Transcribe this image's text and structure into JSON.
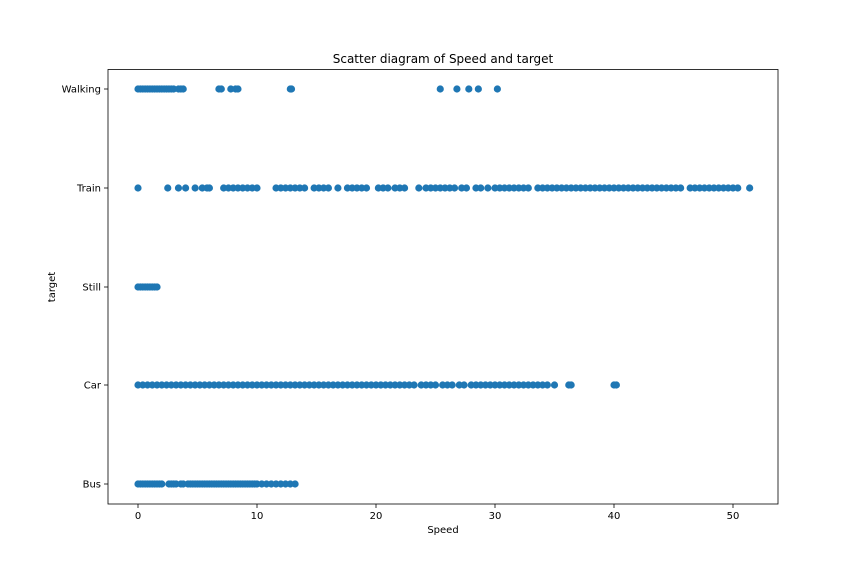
{
  "chart_data": {
    "type": "scatter",
    "title": "Scatter diagram of Speed and target",
    "xlabel": "Speed",
    "ylabel": "target",
    "xlim": [
      -2.6,
      54.0
    ],
    "xticks": [
      0,
      10,
      20,
      30,
      40,
      50
    ],
    "categories": [
      "Bus",
      "Car",
      "Still",
      "Train",
      "Walking"
    ],
    "grid": false,
    "legend": "none",
    "marker_color": "#1f77b4",
    "series": [
      {
        "category": "Bus",
        "x": [
          0,
          0.2,
          0.4,
          0.6,
          0.8,
          1.0,
          1.2,
          1.4,
          1.6,
          1.8,
          2.0,
          2.6,
          2.8,
          3.0,
          3.2,
          3.6,
          3.8,
          4.2,
          4.4,
          4.6,
          4.8,
          5.0,
          5.2,
          5.4,
          5.6,
          5.8,
          6.0,
          6.2,
          6.4,
          6.6,
          6.8,
          7.0,
          7.2,
          7.4,
          7.6,
          7.8,
          8.0,
          8.2,
          8.4,
          8.6,
          8.8,
          9.0,
          9.2,
          9.4,
          9.6,
          9.8,
          10.0,
          10.4,
          10.8,
          11.2,
          11.6,
          12.0,
          12.4,
          12.8,
          13.2
        ]
      },
      {
        "category": "Car",
        "x": [
          0,
          0.4,
          0.8,
          1.2,
          1.6,
          2.0,
          2.4,
          2.8,
          3.2,
          3.6,
          4.0,
          4.4,
          4.8,
          5.2,
          5.6,
          6.0,
          6.4,
          6.8,
          7.2,
          7.6,
          8.0,
          8.4,
          8.8,
          9.2,
          9.6,
          10.0,
          10.4,
          10.8,
          11.2,
          11.6,
          12.0,
          12.4,
          12.8,
          13.2,
          13.6,
          14.0,
          14.4,
          14.8,
          15.2,
          15.6,
          16.0,
          16.4,
          16.8,
          17.2,
          17.6,
          18.0,
          18.4,
          18.8,
          19.2,
          19.6,
          20.0,
          20.4,
          20.8,
          21.2,
          21.6,
          22.0,
          22.4,
          22.8,
          23.2,
          23.8,
          24.2,
          24.6,
          25.0,
          25.6,
          26.0,
          26.4,
          27.0,
          27.4,
          28.0,
          28.4,
          28.8,
          29.2,
          29.6,
          30.0,
          30.4,
          30.8,
          31.2,
          31.6,
          32.0,
          32.4,
          32.8,
          33.2,
          33.6,
          34.0,
          34.4,
          35.0,
          36.2,
          36.4,
          40.0,
          40.2
        ]
      },
      {
        "category": "Still",
        "x": [
          0,
          0.2,
          0.4,
          0.6,
          0.8,
          1.0,
          1.2,
          1.4,
          1.6
        ]
      },
      {
        "category": "Train",
        "x": [
          0,
          2.5,
          3.4,
          4.0,
          4.8,
          5.4,
          5.8,
          6.0,
          7.2,
          7.6,
          8.0,
          8.4,
          8.8,
          9.2,
          9.6,
          10.0,
          11.6,
          12.0,
          12.4,
          12.8,
          13.2,
          13.6,
          14.0,
          14.8,
          15.2,
          15.6,
          16.0,
          16.8,
          17.6,
          18.0,
          18.4,
          18.8,
          19.2,
          20.2,
          20.6,
          21.0,
          21.6,
          22.0,
          22.4,
          23.6,
          24.2,
          24.6,
          25.0,
          25.4,
          25.8,
          26.2,
          26.6,
          27.2,
          27.6,
          28.4,
          28.8,
          29.4,
          30.0,
          30.4,
          30.8,
          31.2,
          31.6,
          32.0,
          32.4,
          32.8,
          33.6,
          34.0,
          34.4,
          34.8,
          35.2,
          35.6,
          36.0,
          36.4,
          36.8,
          37.2,
          37.6,
          38.0,
          38.4,
          38.8,
          39.2,
          39.6,
          40.0,
          40.4,
          40.8,
          41.2,
          41.6,
          42.0,
          42.4,
          42.8,
          43.2,
          43.6,
          44.0,
          44.4,
          44.8,
          45.2,
          45.6,
          46.4,
          46.8,
          47.2,
          47.6,
          48.0,
          48.4,
          48.8,
          49.2,
          49.6,
          50.0,
          50.4,
          51.4
        ]
      },
      {
        "category": "Walking",
        "x": [
          0,
          0.2,
          0.4,
          0.6,
          0.8,
          1.0,
          1.2,
          1.4,
          1.6,
          1.8,
          2.0,
          2.2,
          2.4,
          2.6,
          2.8,
          3.0,
          3.4,
          3.6,
          3.8,
          6.8,
          7.0,
          7.8,
          8.2,
          8.4,
          12.8,
          12.9,
          25.4,
          26.8,
          27.8,
          28.6,
          30.2
        ]
      }
    ]
  }
}
